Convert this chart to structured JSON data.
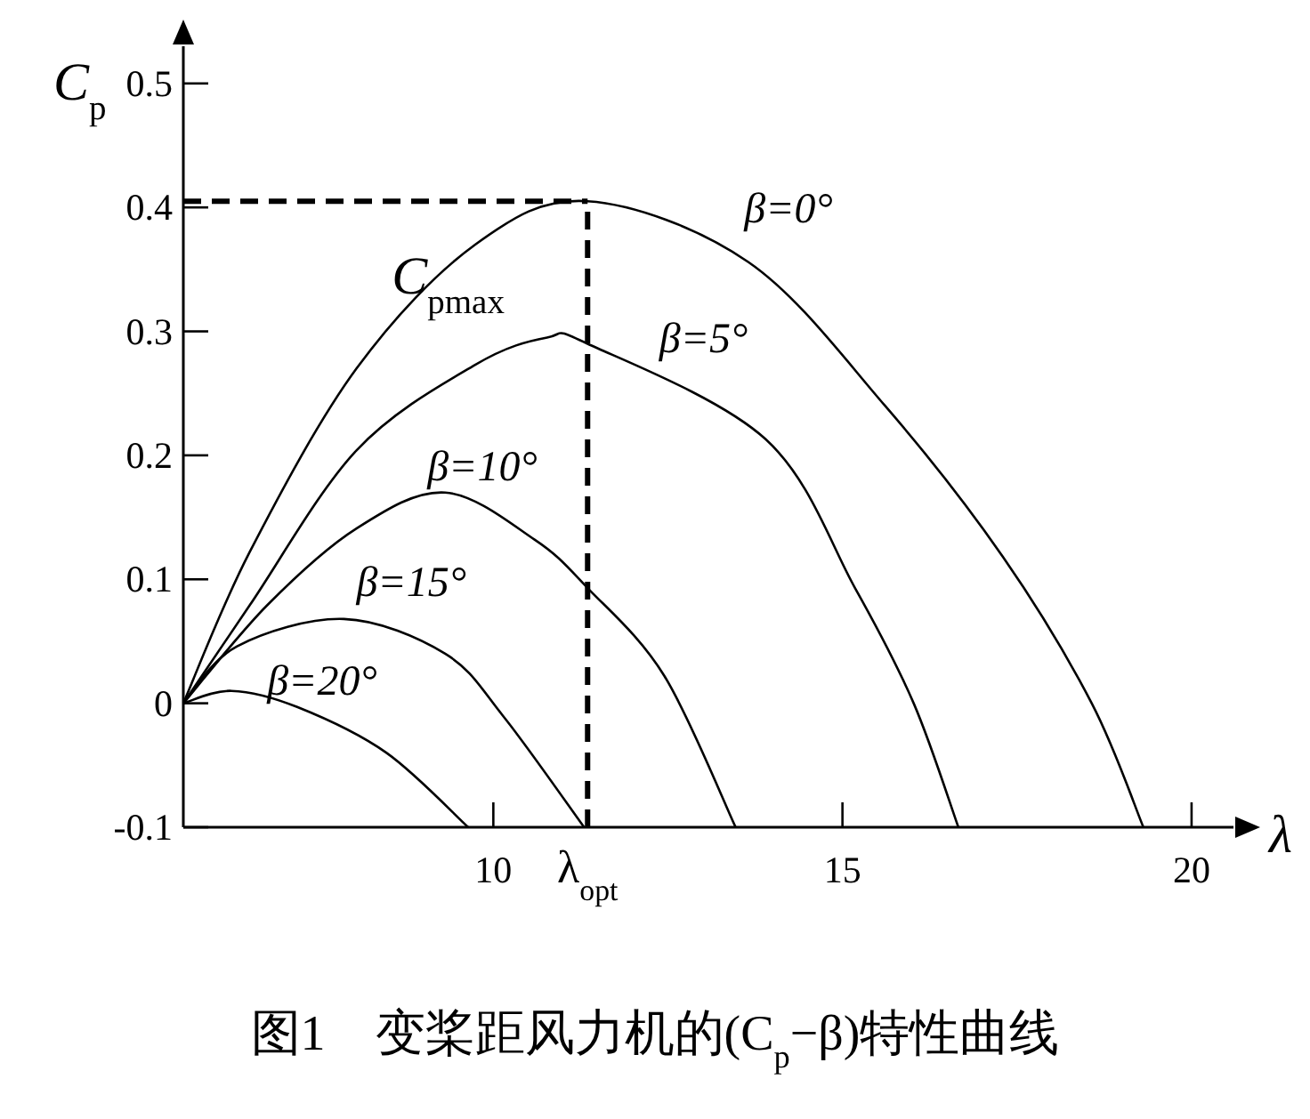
{
  "chart_data": {
    "type": "line",
    "xlabel": "λ",
    "ylabel": "C$_{p}$",
    "xlim": [
      5.56,
      20.6
    ],
    "ylim": [
      -0.1,
      0.53
    ],
    "xticks": [
      10,
      {
        "value": 11.35,
        "label": "λ$_{opt}$"
      },
      15,
      20
    ],
    "yticks": [
      -0.1,
      0,
      0.1,
      0.2,
      0.3,
      0.4,
      0.5
    ],
    "grid": false,
    "legend": false,
    "marker": "none",
    "line_style": "solid",
    "series": [
      {
        "name": "β=0°",
        "color": "#000000",
        "x": [
          5.56,
          6.51,
          8.04,
          9.74,
          11.35,
          13.65,
          15.61,
          17.3,
          18.57,
          19.31
        ],
        "values": [
          0,
          0.122,
          0.27,
          0.37,
          0.405,
          0.356,
          0.24,
          0.118,
          0,
          -0.1
        ]
      },
      {
        "name": "β=5°",
        "color": "#000000",
        "x": [
          5.56,
          6.51,
          8.04,
          9.74,
          10.77,
          11.35,
          13.9,
          15.18,
          16.02,
          16.66
        ],
        "values": [
          0,
          0.079,
          0.204,
          0.273,
          0.295,
          0.29,
          0.213,
          0.093,
          0,
          -0.1
        ]
      },
      {
        "name": "β=10°",
        "color": "#000000",
        "x": [
          5.56,
          6.76,
          8.04,
          9.31,
          10.59,
          11.35,
          12.45,
          13.47
        ],
        "values": [
          0,
          0.079,
          0.141,
          0.17,
          0.132,
          0.093,
          0.022,
          -0.1
        ]
      },
      {
        "name": "β=15°",
        "color": "#000000",
        "x": [
          5.56,
          6.33,
          7.86,
          9.31,
          10.15,
          11.3
        ],
        "values": [
          0,
          0.046,
          0.068,
          0.04,
          -0.011,
          -0.1
        ]
      },
      {
        "name": "β=20°",
        "color": "#000000",
        "x": [
          5.56,
          6.25,
          7.19,
          8.47,
          9.64
        ],
        "values": [
          0,
          0.01,
          -0.003,
          -0.04,
          -0.1
        ]
      }
    ],
    "ref_lines": [
      {
        "axis": "y",
        "value": 0.405,
        "color": "#000000",
        "line_style": "dashed"
      },
      {
        "axis": "x",
        "value": 11.35,
        "color": "#000000",
        "line_style": "dashed"
      }
    ],
    "annotations": [
      {
        "text": "C$_{pmax}$",
        "x": 11.35,
        "y": 0.405
      },
      "图1　变桨距风力机的(C$_{p}$−β)特性曲线"
    ]
  }
}
